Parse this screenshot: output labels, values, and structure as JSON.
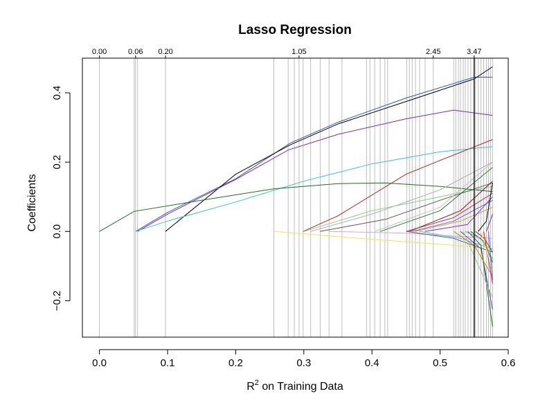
{
  "chart_data": {
    "type": "line",
    "title": "Lasso Regression",
    "xlabel_main": "R",
    "xlabel_sup": "2",
    "xlabel_rest": " on Training Data",
    "ylabel": "Coefficients",
    "xlim": [
      -0.025,
      0.6
    ],
    "ylim": [
      -0.305,
      0.5
    ],
    "x_ticks": [
      0.0,
      0.1,
      0.2,
      0.3,
      0.4,
      0.5,
      0.6
    ],
    "x_tick_labels": [
      "0.0",
      "0.1",
      "0.2",
      "0.3",
      "0.4",
      "0.5",
      "0.6"
    ],
    "y_ticks": [
      -0.2,
      0.0,
      0.2,
      0.4
    ],
    "y_tick_labels": [
      "−0.2",
      "0.0",
      "0.2",
      "0.4"
    ],
    "top_ticks": [
      0.0,
      0.053,
      0.097,
      0.293,
      0.49,
      0.55
    ],
    "top_tick_labels": [
      "0.00",
      "0.06",
      "0.20",
      "1.05",
      "2.45",
      "3.47"
    ],
    "grid": false,
    "vertical_step_lines": [
      0.0,
      0.051,
      0.053,
      0.056,
      0.097,
      0.256,
      0.277,
      0.286,
      0.293,
      0.299,
      0.31,
      0.324,
      0.337,
      0.356,
      0.392,
      0.397,
      0.404,
      0.412,
      0.419,
      0.423,
      0.451,
      0.455,
      0.459,
      0.464,
      0.47,
      0.478,
      0.49,
      0.52,
      0.523,
      0.527,
      0.53,
      0.534,
      0.537,
      0.541,
      0.545,
      0.552,
      0.556,
      0.56,
      0.564,
      0.568,
      0.571,
      0.574,
      0.577
    ],
    "highlight_x": 0.55,
    "series": [
      {
        "color": "#2d55c6",
        "x": [
          0.053,
          0.1,
          0.2,
          0.28,
          0.35,
          0.45,
          0.55,
          0.577
        ],
        "y": [
          0.0,
          0.055,
          0.152,
          0.255,
          0.315,
          0.385,
          0.445,
          0.445
        ]
      },
      {
        "color": "#000000",
        "x": [
          0.097,
          0.2,
          0.28,
          0.35,
          0.45,
          0.55,
          0.577
        ],
        "y": [
          0.0,
          0.165,
          0.25,
          0.31,
          0.375,
          0.44,
          0.475
        ]
      },
      {
        "color": "#7b2bb5",
        "x": [
          0.056,
          0.1,
          0.2,
          0.277,
          0.35,
          0.45,
          0.52,
          0.577
        ],
        "y": [
          0.0,
          0.05,
          0.15,
          0.235,
          0.28,
          0.325,
          0.35,
          0.335
        ]
      },
      {
        "color": "#2cc8c8",
        "x": [
          0.053,
          0.1,
          0.2,
          0.3,
          0.4,
          0.5,
          0.577
        ],
        "y": [
          0.0,
          0.03,
          0.085,
          0.145,
          0.195,
          0.23,
          0.245
        ]
      },
      {
        "color": "#1f6b1f",
        "x": [
          0.0,
          0.051,
          0.15,
          0.256,
          0.35,
          0.42,
          0.5,
          0.577
        ],
        "y": [
          0.0,
          0.058,
          0.09,
          0.123,
          0.138,
          0.14,
          0.13,
          0.115
        ]
      },
      {
        "color": "#b52222",
        "x": [
          0.299,
          0.35,
          0.45,
          0.5,
          0.577
        ],
        "y": [
          0.0,
          0.045,
          0.165,
          0.205,
          0.265
        ]
      },
      {
        "color": "#aaaaaa",
        "x": [
          0.31,
          0.4,
          0.5,
          0.577
        ],
        "y": [
          0.0,
          0.05,
          0.12,
          0.2
        ]
      },
      {
        "color": "#8fc48f",
        "x": [
          0.3,
          0.4,
          0.5,
          0.577
        ],
        "y": [
          0.0,
          0.06,
          0.1,
          0.13
        ]
      },
      {
        "color": "#555555",
        "x": [
          0.324,
          0.42,
          0.5,
          0.577
        ],
        "y": [
          0.0,
          0.035,
          0.09,
          0.14
        ]
      },
      {
        "color": "#2f7a2f",
        "x": [
          0.412,
          0.5,
          0.577
        ],
        "y": [
          0.0,
          0.06,
          0.185
        ]
      },
      {
        "color": "#d81b60",
        "x": [
          0.45,
          0.52,
          0.577
        ],
        "y": [
          0.0,
          0.04,
          0.11
        ]
      },
      {
        "color": "#f08a24",
        "x": [
          0.464,
          0.53,
          0.577
        ],
        "y": [
          0.0,
          0.03,
          0.07
        ]
      },
      {
        "color": "#3b6fd1",
        "x": [
          0.459,
          0.52,
          0.577
        ],
        "y": [
          0.0,
          0.03,
          0.09
        ]
      },
      {
        "color": "#8a2be2",
        "x": [
          0.478,
          0.54,
          0.577
        ],
        "y": [
          0.0,
          0.02,
          0.1
        ]
      },
      {
        "color": "#bfbfbf",
        "x": [
          0.404,
          0.5,
          0.577
        ],
        "y": [
          0.0,
          0.07,
          0.2
        ]
      },
      {
        "color": "#8b1a1a",
        "x": [
          0.455,
          0.53,
          0.577
        ],
        "y": [
          0.0,
          0.06,
          0.145
        ]
      },
      {
        "color": "#f5e642",
        "x": [
          0.256,
          0.35,
          0.45,
          0.52,
          0.577
        ],
        "y": [
          0.0,
          -0.015,
          -0.03,
          -0.04,
          -0.05
        ]
      },
      {
        "color": "#e2a0e2",
        "x": [
          0.337,
          0.45,
          0.577
        ],
        "y": [
          0.0,
          -0.005,
          -0.02
        ]
      },
      {
        "color": "#5a5a5a",
        "x": [
          0.451,
          0.52,
          0.577
        ],
        "y": [
          0.0,
          -0.02,
          -0.06
        ]
      },
      {
        "color": "#2cc8c8",
        "x": [
          0.47,
          0.53,
          0.577
        ],
        "y": [
          0.0,
          -0.02,
          -0.05
        ]
      },
      {
        "color": "#7b2bb5",
        "x": [
          0.53,
          0.56,
          0.577
        ],
        "y": [
          0.0,
          -0.05,
          -0.225
        ]
      },
      {
        "color": "#1f6b1f",
        "x": [
          0.541,
          0.56,
          0.577
        ],
        "y": [
          0.0,
          -0.04,
          -0.275
        ]
      },
      {
        "color": "#b8860b",
        "x": [
          0.52,
          0.55,
          0.577
        ],
        "y": [
          0.0,
          -0.04,
          -0.13
        ]
      },
      {
        "color": "#1f6b1f",
        "x": [
          0.545,
          0.565,
          0.577
        ],
        "y": [
          0.0,
          -0.03,
          -0.09
        ]
      },
      {
        "color": "#4f9cd6",
        "x": [
          0.537,
          0.56,
          0.577
        ],
        "y": [
          0.0,
          -0.02,
          -0.08
        ]
      },
      {
        "color": "#b52222",
        "x": [
          0.552,
          0.565,
          0.577
        ],
        "y": [
          0.0,
          -0.02,
          -0.06
        ]
      },
      {
        "color": "#000000",
        "x": [
          0.556,
          0.568,
          0.577
        ],
        "y": [
          0.0,
          0.03,
          0.14
        ]
      },
      {
        "color": "#d81b60",
        "x": [
          0.564,
          0.577
        ],
        "y": [
          0.0,
          -0.15
        ]
      },
      {
        "color": "#7b2bb5",
        "x": [
          0.568,
          0.577
        ],
        "y": [
          0.0,
          0.05
        ]
      },
      {
        "color": "#f5e642",
        "x": [
          0.56,
          0.577
        ],
        "y": [
          0.0,
          -0.11
        ]
      },
      {
        "color": "#3b6fd1",
        "x": [
          0.571,
          0.577
        ],
        "y": [
          0.0,
          -0.14
        ]
      },
      {
        "color": "#8fc48f",
        "x": [
          0.534,
          0.577
        ],
        "y": [
          0.0,
          -0.19
        ]
      }
    ]
  },
  "colors": {
    "axis": "#000000",
    "step_line": "#bdbdbd",
    "highlight_line": "#222222",
    "background": "#ffffff"
  }
}
